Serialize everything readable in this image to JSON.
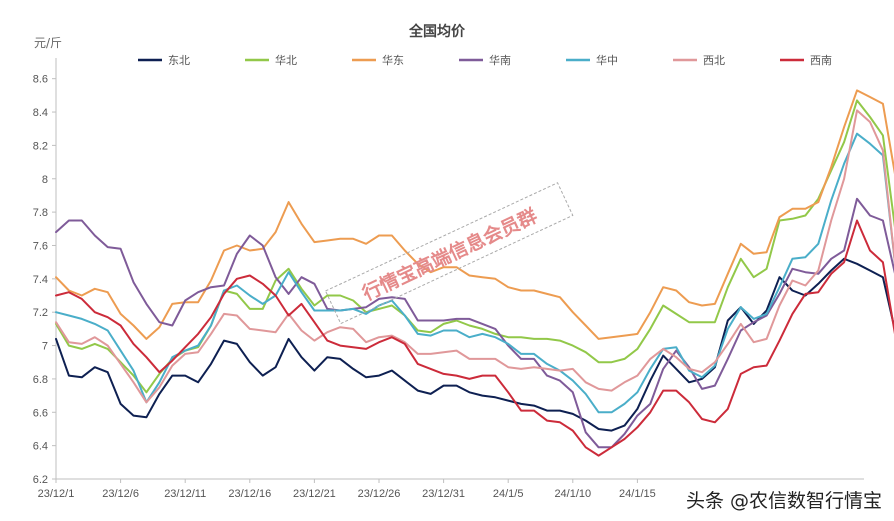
{
  "chart_data": {
    "type": "line",
    "title": "全国均价",
    "ylabel": "元/斤",
    "ylim": [
      6.2,
      8.7
    ],
    "yticks": [
      6.2,
      6.4,
      6.6,
      6.8,
      7,
      7.2,
      7.4,
      7.6,
      7.8,
      8,
      8.2,
      8.4,
      8.6
    ],
    "x": [
      "23/12/1",
      "23/12/2",
      "23/12/3",
      "23/12/4",
      "23/12/5",
      "23/12/6",
      "23/12/7",
      "23/12/8",
      "23/12/9",
      "23/12/10",
      "23/12/11",
      "23/12/12",
      "23/12/13",
      "23/12/14",
      "23/12/15",
      "23/12/16",
      "23/12/17",
      "23/12/18",
      "23/12/19",
      "23/12/20",
      "23/12/21",
      "23/12/22",
      "23/12/23",
      "23/12/24",
      "23/12/25",
      "23/12/26",
      "23/12/27",
      "23/12/28",
      "23/12/29",
      "23/12/30",
      "23/12/31",
      "24/1/1",
      "24/1/2",
      "24/1/3",
      "24/1/4",
      "24/1/5",
      "24/1/6",
      "24/1/7",
      "24/1/8",
      "24/1/9",
      "24/1/10",
      "24/1/11",
      "24/1/12",
      "24/1/13",
      "24/1/14",
      "24/1/15",
      "24/1/16",
      "24/1/17",
      "24/1/18",
      "24/1/19",
      "24/1/20",
      "24/1/21",
      "24/1/22",
      "24/1/23",
      "24/1/24",
      "24/1/25",
      "24/1/26",
      "24/1/27",
      "24/1/28",
      "24/1/29",
      "24/1/30",
      "24/1/31",
      "24/2/1",
      "24/2/2",
      "24/2/3",
      "24/2/4",
      "24/2/5",
      "24/2/6",
      "24/2/7"
    ],
    "xtick_labels": [
      "23/12/1",
      "23/12/6",
      "23/12/11",
      "23/12/16",
      "23/12/21",
      "23/12/26",
      "23/12/31",
      "24/1/5",
      "24/1/10",
      "24/1/15"
    ],
    "grid": false,
    "legend_position": "top",
    "series": [
      {
        "name": "东北",
        "color": "#0e2052",
        "values": [
          7.04,
          6.82,
          6.81,
          6.87,
          6.84,
          6.65,
          6.58,
          6.57,
          6.71,
          6.82,
          6.82,
          6.78,
          6.89,
          7.03,
          7.01,
          6.9,
          6.82,
          6.87,
          7.04,
          6.93,
          6.85,
          6.93,
          6.92,
          6.86,
          6.81,
          6.82,
          6.85,
          6.79,
          6.73,
          6.71,
          6.76,
          6.76,
          6.72,
          6.7,
          6.69,
          6.67,
          6.65,
          6.64,
          6.61,
          6.61,
          6.59,
          6.55,
          6.5,
          6.49,
          6.52,
          6.62,
          6.79,
          6.94,
          6.86,
          6.78,
          6.8,
          6.87,
          7.15,
          7.23,
          7.13,
          7.21,
          7.41,
          7.33,
          7.3,
          7.37,
          7.45,
          7.52,
          7.49,
          7.45,
          7.41,
          7.07,
          7.0,
          7.0,
          7.0
        ]
      },
      {
        "name": "华北",
        "color": "#92c849",
        "values": [
          7.13,
          7.0,
          6.98,
          7.01,
          6.98,
          6.9,
          6.82,
          6.72,
          6.83,
          6.92,
          6.97,
          6.99,
          7.12,
          7.33,
          7.31,
          7.22,
          7.22,
          7.39,
          7.46,
          7.34,
          7.24,
          7.3,
          7.3,
          7.27,
          7.2,
          7.22,
          7.24,
          7.18,
          7.09,
          7.08,
          7.13,
          7.15,
          7.12,
          7.1,
          7.07,
          7.05,
          7.05,
          7.04,
          7.04,
          7.03,
          7.0,
          6.96,
          6.9,
          6.9,
          6.92,
          6.98,
          7.1,
          7.24,
          7.19,
          7.14,
          7.14,
          7.14,
          7.35,
          7.52,
          7.41,
          7.46,
          7.75,
          7.76,
          7.78,
          7.88,
          8.05,
          8.22,
          8.47,
          8.37,
          8.26,
          7.67,
          7.6,
          7.6,
          7.6
        ]
      },
      {
        "name": "华东",
        "color": "#ed9c51",
        "values": [
          7.41,
          7.33,
          7.3,
          7.34,
          7.32,
          7.19,
          7.12,
          7.04,
          7.11,
          7.25,
          7.26,
          7.26,
          7.39,
          7.57,
          7.6,
          7.57,
          7.58,
          7.68,
          7.86,
          7.73,
          7.62,
          7.63,
          7.64,
          7.64,
          7.61,
          7.66,
          7.66,
          7.57,
          7.49,
          7.44,
          7.47,
          7.47,
          7.42,
          7.41,
          7.4,
          7.35,
          7.33,
          7.33,
          7.31,
          7.29,
          7.2,
          7.12,
          7.04,
          7.05,
          7.06,
          7.07,
          7.2,
          7.35,
          7.33,
          7.26,
          7.24,
          7.25,
          7.43,
          7.61,
          7.55,
          7.56,
          7.77,
          7.82,
          7.82,
          7.86,
          8.07,
          8.31,
          8.53,
          8.49,
          8.45,
          8.0,
          7.95,
          7.95,
          7.95
        ]
      },
      {
        "name": "华南",
        "color": "#7f5b99",
        "values": [
          7.68,
          7.75,
          7.75,
          7.66,
          7.59,
          7.58,
          7.38,
          7.25,
          7.14,
          7.12,
          7.27,
          7.32,
          7.35,
          7.36,
          7.55,
          7.66,
          7.6,
          7.41,
          7.31,
          7.41,
          7.37,
          7.22,
          7.21,
          7.22,
          7.23,
          7.28,
          7.29,
          7.28,
          7.15,
          7.15,
          7.15,
          7.16,
          7.16,
          7.13,
          7.1,
          7.0,
          6.92,
          6.92,
          6.82,
          6.79,
          6.72,
          6.48,
          6.39,
          6.39,
          6.47,
          6.58,
          6.65,
          6.86,
          6.97,
          6.87,
          6.74,
          6.76,
          6.92,
          7.09,
          7.14,
          7.18,
          7.31,
          7.46,
          7.44,
          7.43,
          7.52,
          7.57,
          7.88,
          7.78,
          7.75,
          7.41,
          7.4,
          7.4,
          7.4
        ]
      },
      {
        "name": "华中",
        "color": "#4aaec9",
        "values": [
          7.2,
          7.18,
          7.16,
          7.13,
          7.09,
          6.97,
          6.85,
          6.66,
          6.78,
          6.93,
          6.97,
          7.0,
          7.12,
          7.33,
          7.36,
          7.3,
          7.25,
          7.3,
          7.44,
          7.32,
          7.21,
          7.21,
          7.21,
          7.22,
          7.19,
          7.24,
          7.27,
          7.18,
          7.07,
          7.06,
          7.09,
          7.09,
          7.05,
          7.07,
          7.05,
          7.01,
          6.95,
          6.95,
          6.89,
          6.85,
          6.79,
          6.71,
          6.6,
          6.6,
          6.65,
          6.72,
          6.86,
          6.98,
          6.99,
          6.85,
          6.81,
          6.88,
          7.1,
          7.23,
          7.16,
          7.19,
          7.35,
          7.52,
          7.53,
          7.61,
          7.87,
          8.09,
          8.27,
          8.21,
          8.14,
          7.45,
          7.4,
          7.4,
          7.4
        ]
      },
      {
        "name": "西北",
        "color": "#e0989a",
        "values": [
          7.14,
          7.02,
          7.01,
          7.05,
          7.0,
          6.89,
          6.78,
          6.66,
          6.75,
          6.88,
          6.95,
          6.96,
          7.07,
          7.19,
          7.18,
          7.1,
          7.09,
          7.08,
          7.19,
          7.09,
          7.03,
          7.08,
          7.11,
          7.1,
          7.02,
          7.05,
          7.06,
          7.02,
          6.95,
          6.95,
          6.96,
          6.97,
          6.92,
          6.92,
          6.92,
          6.87,
          6.86,
          6.87,
          6.86,
          6.85,
          6.86,
          6.78,
          6.74,
          6.73,
          6.78,
          6.82,
          6.92,
          6.98,
          6.93,
          6.86,
          6.84,
          6.9,
          7.01,
          7.13,
          7.02,
          7.04,
          7.24,
          7.39,
          7.36,
          7.45,
          7.75,
          8.0,
          8.41,
          8.34,
          8.17,
          7.45,
          7.4,
          7.4,
          7.4
        ]
      },
      {
        "name": "西南",
        "color": "#cc2b3a",
        "values": [
          7.3,
          7.32,
          7.28,
          7.2,
          7.17,
          7.12,
          7.01,
          6.93,
          6.84,
          6.91,
          6.99,
          7.07,
          7.17,
          7.31,
          7.4,
          7.42,
          7.37,
          7.3,
          7.18,
          7.25,
          7.14,
          7.03,
          7.0,
          6.99,
          6.98,
          7.02,
          7.05,
          7.01,
          6.89,
          6.86,
          6.83,
          6.82,
          6.8,
          6.82,
          6.82,
          6.72,
          6.61,
          6.61,
          6.55,
          6.54,
          6.49,
          6.39,
          6.34,
          6.39,
          6.44,
          6.51,
          6.6,
          6.73,
          6.73,
          6.66,
          6.56,
          6.54,
          6.62,
          6.83,
          6.87,
          6.88,
          7.03,
          7.19,
          7.31,
          7.32,
          7.43,
          7.5,
          7.75,
          7.57,
          7.5,
          7.04,
          7.0,
          7.0,
          7.0
        ]
      }
    ]
  },
  "watermark": "行情宝高端信息会员群",
  "credit": "头条 @农信数智行情宝"
}
